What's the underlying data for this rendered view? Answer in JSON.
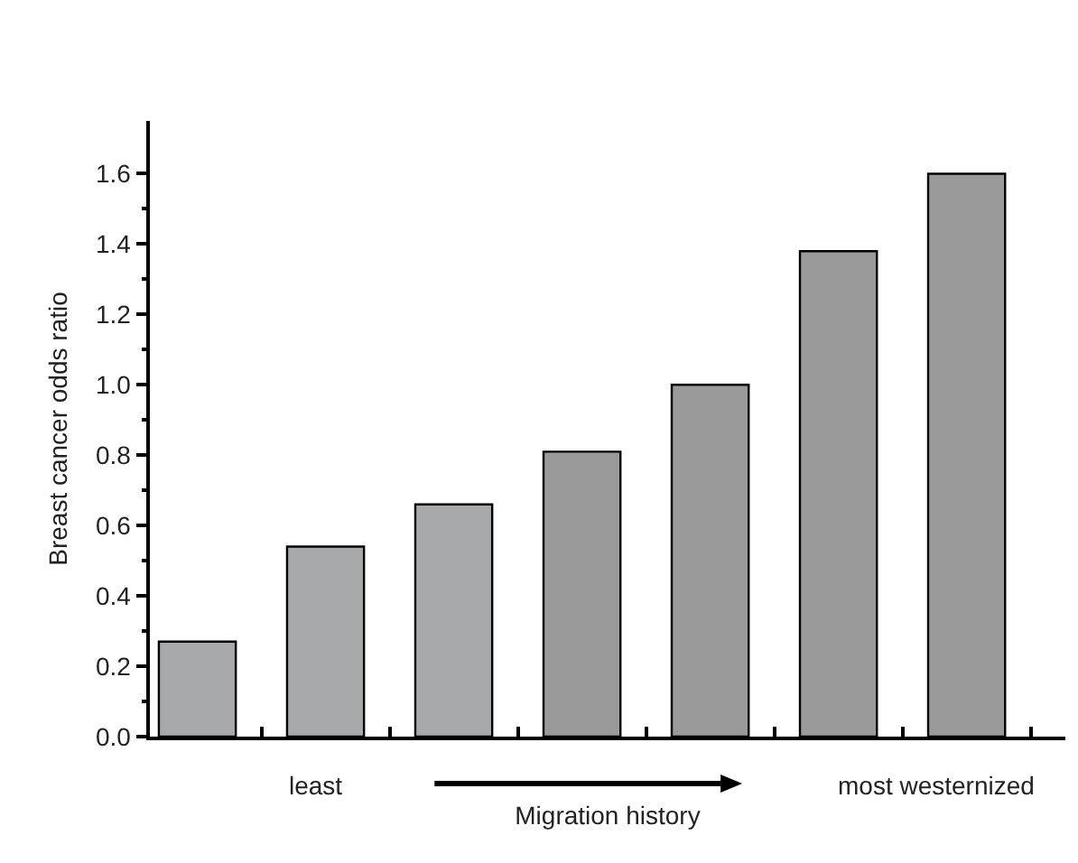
{
  "chart_data": {
    "type": "bar",
    "categories": [
      null,
      null,
      null,
      null,
      null,
      null,
      null
    ],
    "values": [
      0.27,
      0.54,
      0.66,
      0.81,
      1.0,
      1.38,
      1.6
    ],
    "colors": [
      "#a8a9ac",
      "#a8a9ac",
      "#a8a9ac",
      "#9a9a9a",
      "#9a9a9a",
      "#9a9a9a",
      "#9a9a9a"
    ],
    "xlabel": "Migration history",
    "ylabel": "Breast cancer odds ratio",
    "annotations": [
      "least",
      "most westernized"
    ],
    "ylim": [
      0,
      1.75
    ],
    "yticks": [
      {
        "value": 0,
        "label": "0.0"
      },
      0.2,
      0.4,
      0.6,
      0.8,
      {
        "value": 1,
        "label": "1.0"
      },
      1.2,
      1.4,
      1.6
    ],
    "tick_labels": "y",
    "grid": false
  }
}
